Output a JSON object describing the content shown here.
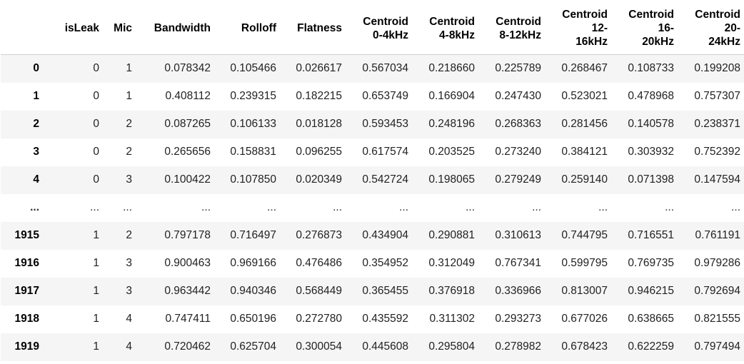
{
  "columns": [
    "isLeak",
    "Mic",
    "Bandwidth",
    "Rolloff",
    "Flatness",
    "Centroid 0-4kHz",
    "Centroid 4-8kHz",
    "Centroid 8-12kHz",
    "Centroid 12-16kHz",
    "Centroid 16-20kHz",
    "Centroid 20-24kHz"
  ],
  "column_html_lines": [
    [
      "isLeak"
    ],
    [
      "Mic"
    ],
    [
      "Bandwidth"
    ],
    [
      "Rolloff"
    ],
    [
      "Flatness"
    ],
    [
      "Centroid",
      "0-4kHz"
    ],
    [
      "Centroid",
      "4-8kHz"
    ],
    [
      "Centroid",
      "8-12kHz"
    ],
    [
      "Centroid",
      "12-",
      "16kHz"
    ],
    [
      "Centroid",
      "16-",
      "20kHz"
    ],
    [
      "Centroid",
      "20-",
      "24kHz"
    ]
  ],
  "rows": [
    {
      "index": "0",
      "values": [
        "0",
        "1",
        "0.078342",
        "0.105466",
        "0.026617",
        "0.567034",
        "0.218660",
        "0.225789",
        "0.268467",
        "0.108733",
        "0.199208"
      ]
    },
    {
      "index": "1",
      "values": [
        "0",
        "1",
        "0.408112",
        "0.239315",
        "0.182215",
        "0.653749",
        "0.166904",
        "0.247430",
        "0.523021",
        "0.478968",
        "0.757307"
      ]
    },
    {
      "index": "2",
      "values": [
        "0",
        "2",
        "0.087265",
        "0.106133",
        "0.018128",
        "0.593453",
        "0.248196",
        "0.268363",
        "0.281456",
        "0.140578",
        "0.238371"
      ]
    },
    {
      "index": "3",
      "values": [
        "0",
        "2",
        "0.265656",
        "0.158831",
        "0.096255",
        "0.617574",
        "0.203525",
        "0.273240",
        "0.384121",
        "0.303932",
        "0.752392"
      ]
    },
    {
      "index": "4",
      "values": [
        "0",
        "3",
        "0.100422",
        "0.107850",
        "0.020349",
        "0.542724",
        "0.198065",
        "0.279249",
        "0.259140",
        "0.071398",
        "0.147594"
      ]
    },
    {
      "index": "...",
      "values": [
        "...",
        "...",
        "...",
        "...",
        "...",
        "...",
        "...",
        "...",
        "...",
        "...",
        "..."
      ]
    },
    {
      "index": "1915",
      "values": [
        "1",
        "2",
        "0.797178",
        "0.716497",
        "0.276873",
        "0.434904",
        "0.290881",
        "0.310613",
        "0.744795",
        "0.716551",
        "0.761191"
      ]
    },
    {
      "index": "1916",
      "values": [
        "1",
        "3",
        "0.900463",
        "0.969166",
        "0.476486",
        "0.354952",
        "0.312049",
        "0.767341",
        "0.599795",
        "0.769735",
        "0.979286"
      ]
    },
    {
      "index": "1917",
      "values": [
        "1",
        "3",
        "0.963442",
        "0.940346",
        "0.568449",
        "0.365455",
        "0.376918",
        "0.336966",
        "0.813007",
        "0.946215",
        "0.792694"
      ]
    },
    {
      "index": "1918",
      "values": [
        "1",
        "4",
        "0.747411",
        "0.650196",
        "0.272780",
        "0.435592",
        "0.311302",
        "0.293273",
        "0.677026",
        "0.638665",
        "0.821555"
      ]
    },
    {
      "index": "1919",
      "values": [
        "1",
        "4",
        "0.720462",
        "0.625704",
        "0.300054",
        "0.445608",
        "0.295804",
        "0.278982",
        "0.678423",
        "0.622259",
        "0.797494"
      ]
    }
  ]
}
